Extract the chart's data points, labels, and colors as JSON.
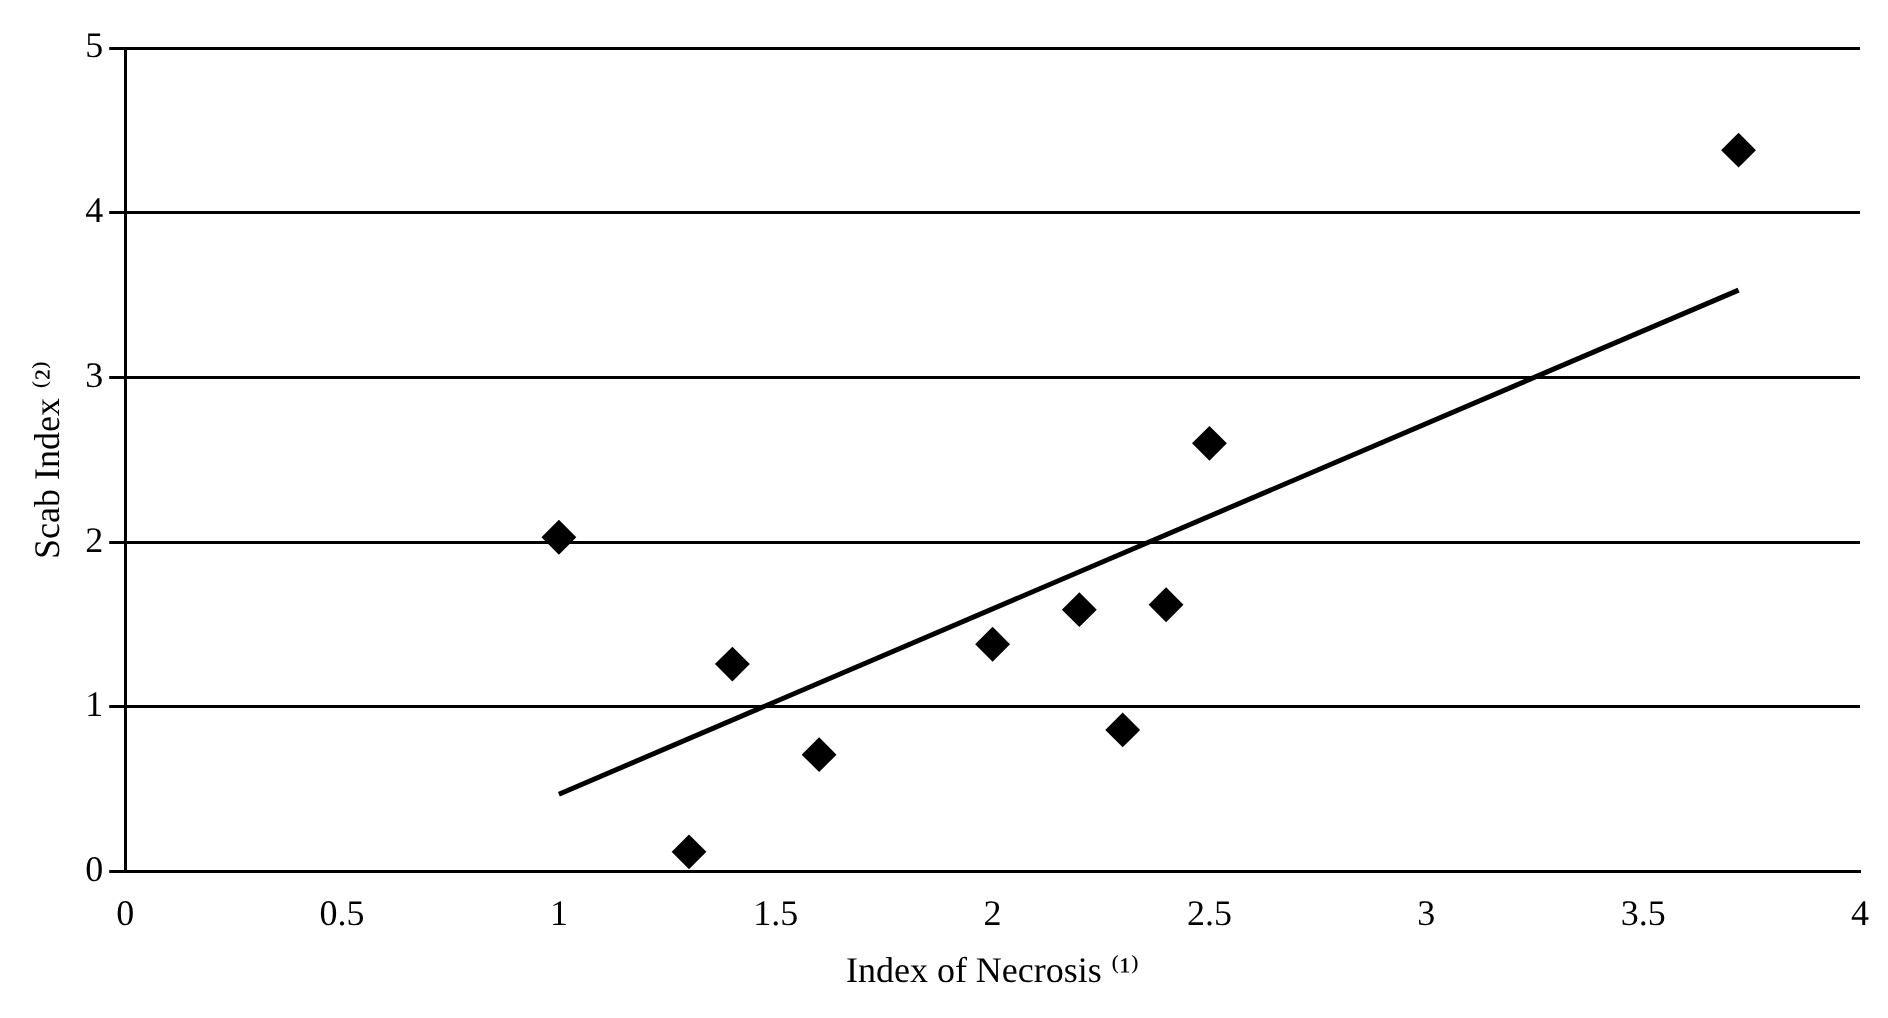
{
  "chart_data": {
    "type": "scatter",
    "xlabel": "Index of Necrosis ⁽¹⁾",
    "ylabel": "Scab Index ⁽²⁾",
    "xlim": [
      0,
      4
    ],
    "xticks": [
      0,
      0.5,
      1,
      1.5,
      2,
      2.5,
      3,
      3.5,
      4
    ],
    "ylim": [
      0,
      5
    ],
    "yticks": [
      0,
      1,
      2,
      3,
      4,
      5
    ],
    "grid": "y",
    "legend": false,
    "marker": "diamond",
    "series": [
      {
        "type": "scatter",
        "color": "#000000",
        "x": [
          1.0,
          1.3,
          1.4,
          1.6,
          2.0,
          2.2,
          2.3,
          2.4,
          2.5,
          3.72
        ],
        "values": [
          2.03,
          0.12,
          1.26,
          0.71,
          1.38,
          1.59,
          0.86,
          1.62,
          2.6,
          4.38
        ]
      },
      {
        "type": "line",
        "color": "#000000",
        "marker": "none",
        "x": [
          1.0,
          3.72
        ],
        "values": [
          0.47,
          3.53
        ]
      }
    ]
  }
}
